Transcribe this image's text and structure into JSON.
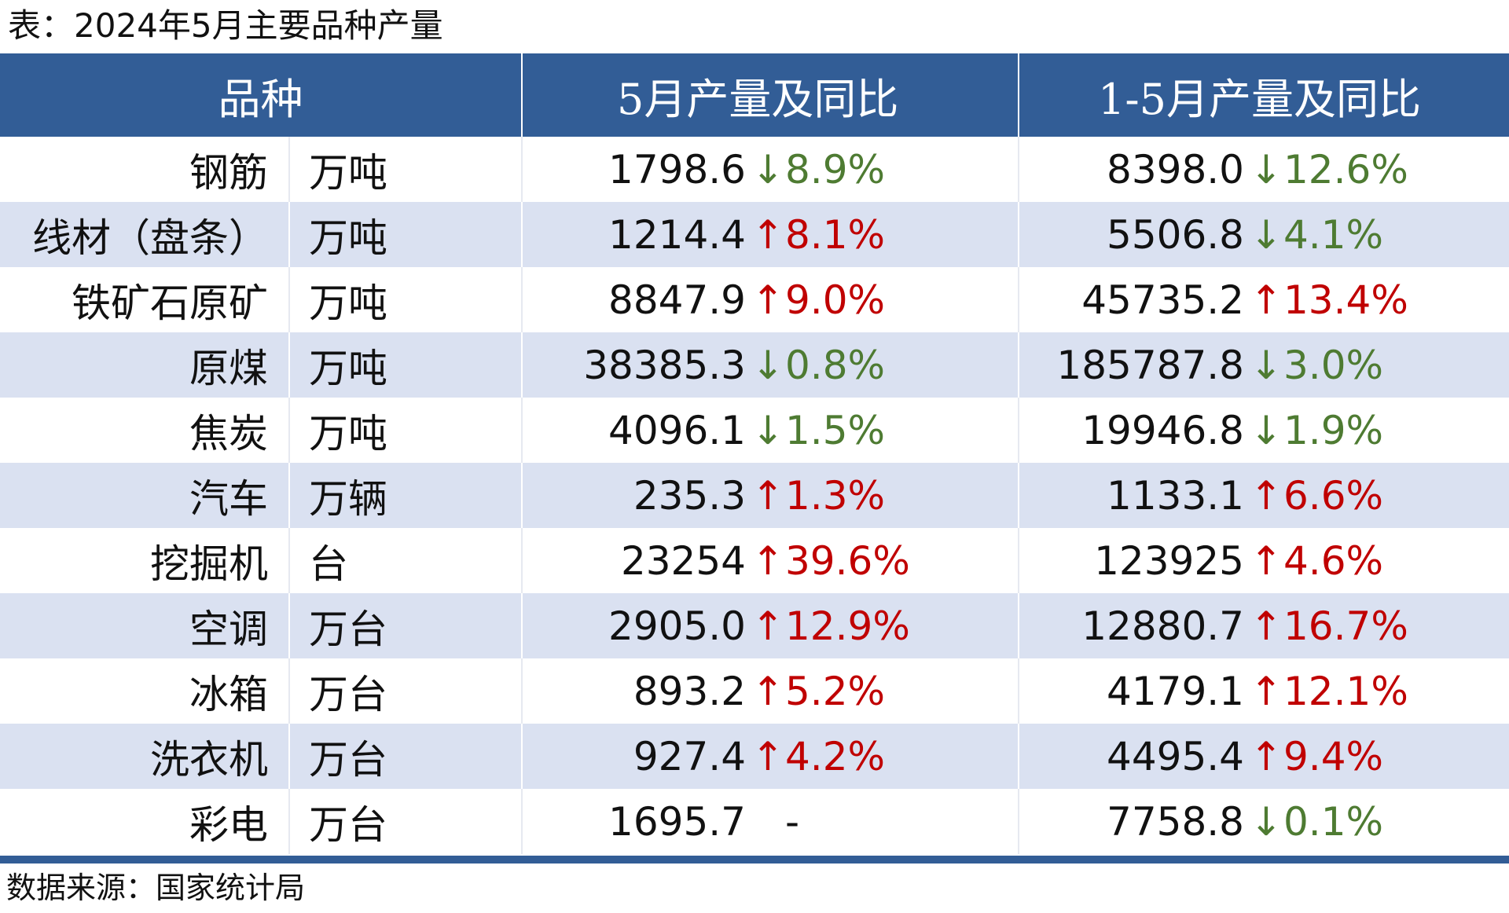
{
  "title": "表：2024年5月主要品种产量",
  "header": {
    "col_name": "品种",
    "col_may": "5月产量及同比",
    "col_ytd": "1-5月产量及同比"
  },
  "arrows": {
    "up": "↑",
    "down": "↓"
  },
  "colors": {
    "header_bg": "#325D96",
    "alt_row_bg": "#DAE1F1",
    "up": "#C00000",
    "down": "#4E7B32"
  },
  "rows": [
    {
      "name": "钢筋",
      "unit": "万吨",
      "may_value": "1798.6",
      "may_dir": "down",
      "may_pct": "8.9%",
      "ytd_value": "8398.0",
      "ytd_dir": "down",
      "ytd_pct": "12.6%"
    },
    {
      "name": "线材（盘条）",
      "unit": "万吨",
      "may_value": "1214.4",
      "may_dir": "up",
      "may_pct": "8.1%",
      "ytd_value": "5506.8",
      "ytd_dir": "down",
      "ytd_pct": "4.1%"
    },
    {
      "name": "铁矿石原矿",
      "unit": "万吨",
      "may_value": "8847.9",
      "may_dir": "up",
      "may_pct": "9.0%",
      "ytd_value": "45735.2",
      "ytd_dir": "up",
      "ytd_pct": "13.4%"
    },
    {
      "name": "原煤",
      "unit": "万吨",
      "may_value": "38385.3",
      "may_dir": "down",
      "may_pct": "0.8%",
      "ytd_value": "185787.8",
      "ytd_dir": "down",
      "ytd_pct": "3.0%"
    },
    {
      "name": "焦炭",
      "unit": "万吨",
      "may_value": "4096.1",
      "may_dir": "down",
      "may_pct": "1.5%",
      "ytd_value": "19946.8",
      "ytd_dir": "down",
      "ytd_pct": "1.9%"
    },
    {
      "name": "汽车",
      "unit": "万辆",
      "may_value": "235.3",
      "may_dir": "up",
      "may_pct": "1.3%",
      "ytd_value": "1133.1",
      "ytd_dir": "up",
      "ytd_pct": "6.6%"
    },
    {
      "name": "挖掘机",
      "unit": "台",
      "may_value": "23254",
      "may_dir": "up",
      "may_pct": "39.6%",
      "ytd_value": "123925",
      "ytd_dir": "up",
      "ytd_pct": "4.6%"
    },
    {
      "name": "空调",
      "unit": "万台",
      "may_value": "2905.0",
      "may_dir": "up",
      "may_pct": "12.9%",
      "ytd_value": "12880.7",
      "ytd_dir": "up",
      "ytd_pct": "16.7%"
    },
    {
      "name": "冰箱",
      "unit": "万台",
      "may_value": "893.2",
      "may_dir": "up",
      "may_pct": "5.2%",
      "ytd_value": "4179.1",
      "ytd_dir": "up",
      "ytd_pct": "12.1%"
    },
    {
      "name": "洗衣机",
      "unit": "万台",
      "may_value": "927.4",
      "may_dir": "up",
      "may_pct": "4.2%",
      "ytd_value": "4495.4",
      "ytd_dir": "up",
      "ytd_pct": "9.4%"
    },
    {
      "name": "彩电",
      "unit": "万台",
      "may_value": "1695.7",
      "may_dir": "flat",
      "may_pct": "-",
      "ytd_value": "7758.8",
      "ytd_dir": "down",
      "ytd_pct": "0.1%"
    }
  ],
  "source": "数据来源：国家统计局"
}
